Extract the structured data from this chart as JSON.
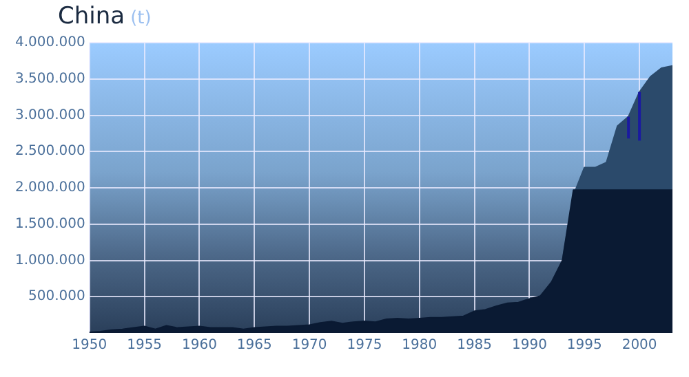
{
  "chart_data": {
    "type": "area",
    "title": "China",
    "subtitle": "(t)",
    "x": [
      1950,
      1951,
      1952,
      1953,
      1954,
      1955,
      1956,
      1957,
      1958,
      1959,
      1960,
      1961,
      1962,
      1963,
      1964,
      1965,
      1966,
      1967,
      1968,
      1969,
      1970,
      1971,
      1972,
      1973,
      1974,
      1975,
      1976,
      1977,
      1978,
      1979,
      1980,
      1981,
      1982,
      1983,
      1984,
      1985,
      1986,
      1987,
      1988,
      1989,
      1990,
      1991,
      1992,
      1993,
      1994,
      1995,
      1996,
      1997,
      1998,
      1999,
      2000,
      2001,
      2002,
      2003
    ],
    "series": [
      {
        "color": "#2b4a6b",
        "values": [
          null,
          null,
          null,
          null,
          null,
          null,
          null,
          null,
          null,
          null,
          null,
          null,
          null,
          null,
          null,
          null,
          null,
          null,
          null,
          null,
          null,
          null,
          null,
          null,
          null,
          null,
          null,
          null,
          null,
          null,
          null,
          null,
          null,
          null,
          null,
          null,
          null,
          null,
          null,
          null,
          null,
          null,
          null,
          1000000,
          1900000,
          2280000,
          2280000,
          2350000,
          2850000,
          2980000,
          3320000,
          3530000,
          3650000,
          3680000
        ],
        "errors": [
          null,
          null,
          null,
          null,
          null,
          null,
          null,
          null,
          null,
          null,
          null,
          null,
          null,
          null,
          null,
          null,
          null,
          null,
          null,
          null,
          null,
          null,
          null,
          null,
          null,
          null,
          null,
          null,
          null,
          null,
          null,
          null,
          null,
          null,
          null,
          null,
          null,
          null,
          null,
          null,
          null,
          null,
          null,
          null,
          null,
          null,
          null,
          null,
          null,
          [
            2680000,
            2980000
          ],
          [
            2650000,
            3320000
          ],
          null,
          null,
          null
        ]
      },
      {
        "color": "#0a1a33",
        "values": [
          10000,
          20000,
          40000,
          50000,
          70000,
          90000,
          50000,
          100000,
          70000,
          80000,
          90000,
          70000,
          70000,
          70000,
          50000,
          70000,
          80000,
          90000,
          90000,
          100000,
          110000,
          140000,
          160000,
          130000,
          150000,
          160000,
          150000,
          190000,
          200000,
          190000,
          200000,
          210000,
          210000,
          220000,
          230000,
          300000,
          320000,
          370000,
          410000,
          420000,
          470000,
          510000,
          700000,
          1000000,
          1970000,
          1970000,
          1970000,
          1970000,
          1970000,
          1970000,
          1970000,
          1970000,
          1970000,
          1970000
        ]
      }
    ],
    "xlim": [
      1950,
      2003
    ],
    "xticks": [
      1950,
      1955,
      1960,
      1965,
      1970,
      1975,
      1980,
      1985,
      1990,
      1995,
      2000
    ],
    "ylim": [
      0,
      4000000
    ],
    "yticks": [
      {
        "value": 500000,
        "label": "500.000"
      },
      {
        "value": 1000000,
        "label": "1.000.000"
      },
      {
        "value": 1500000,
        "label": "1.500.000"
      },
      {
        "value": 2000000,
        "label": "2.000.000"
      },
      {
        "value": 2500000,
        "label": "2.500.000"
      },
      {
        "value": 3000000,
        "label": "3.000.000"
      },
      {
        "value": 3500000,
        "label": "3.500.000"
      },
      {
        "value": 4000000,
        "label": "4.000.000"
      }
    ],
    "grid": true,
    "legend": false,
    "marker": "none"
  }
}
